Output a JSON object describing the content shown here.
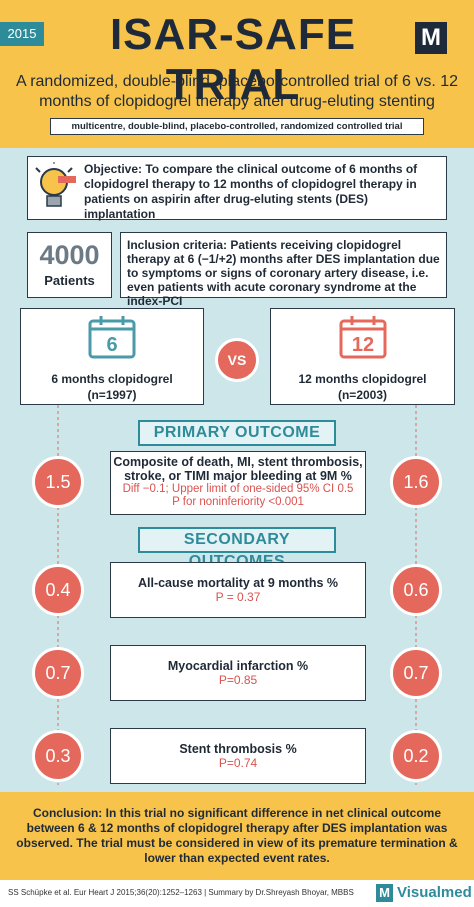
{
  "header": {
    "year": "2015",
    "title": "ISAR-SAFE TRIAL",
    "logo": "M",
    "subtitle": "A randomized, double-blind, placebo-controlled trial of 6 vs. 12 months of clopidogrel therapy after drug-eluting stenting",
    "tag": "multicentre, double-blind, placebo-controlled, randomized controlled trial"
  },
  "objective": "Objective: To compare the clinical outcome of 6 months of clopidogrel therapy to 12 months of clopidogrel therapy in patients on aspirin after drug-eluting stents (DES) implantation",
  "patients": {
    "count": "4000",
    "label": "Patients"
  },
  "inclusion": "Inclusion criteria: Patients receiving clopidogrel therapy at 6 (−1/+2) months after DES implantation due to symptoms or signs of coronary artery disease, i.e. even patients with acute coronary syndrome at the index-PCI",
  "groups": [
    {
      "calendar": "6",
      "label": "6 months clopidogrel",
      "n": "(n=1997)"
    },
    {
      "calendar": "12",
      "label": "12 months clopidogrel",
      "n": "(n=2003)"
    }
  ],
  "vs": "VS",
  "primary": {
    "heading": "PRIMARY OUTCOME",
    "left": "1.5",
    "right": "1.6",
    "text": "Composite of death, MI, stent thrombosis, stroke, or TIMI major bleeding at 9M %",
    "diff": "Diff −0.1; Upper limit of one-sided 95% CI 0.5",
    "p": "P  for noninferiority <0.001"
  },
  "secondary": {
    "heading": "SECONDARY OUTCOMES",
    "rows": [
      {
        "left": "0.4",
        "right": "0.6",
        "label": "All-cause mortality at 9 months %",
        "p": "P = 0.37"
      },
      {
        "left": "0.7",
        "right": "0.7",
        "label": "Myocardial infarction %",
        "p": "P=0.85"
      },
      {
        "left": "0.3",
        "right": "0.2",
        "label": "Stent thrombosis %",
        "p": "P=0.74"
      }
    ]
  },
  "conclusion": "Conclusion: In this trial no significant difference in net clinical outcome between 6 & 12 months of clopidogrel therapy after DES implantation was observed. The trial must be considered in view of its premature termination & lower than expected event rates.",
  "footer": {
    "citation": "SS Schüpke et al.  Eur Heart J 2015;36(20):1252–1263 | Summary by Dr.Shreyash Bhoyar, MBBS",
    "brand_logo": "M",
    "brand": "Visualmed"
  }
}
